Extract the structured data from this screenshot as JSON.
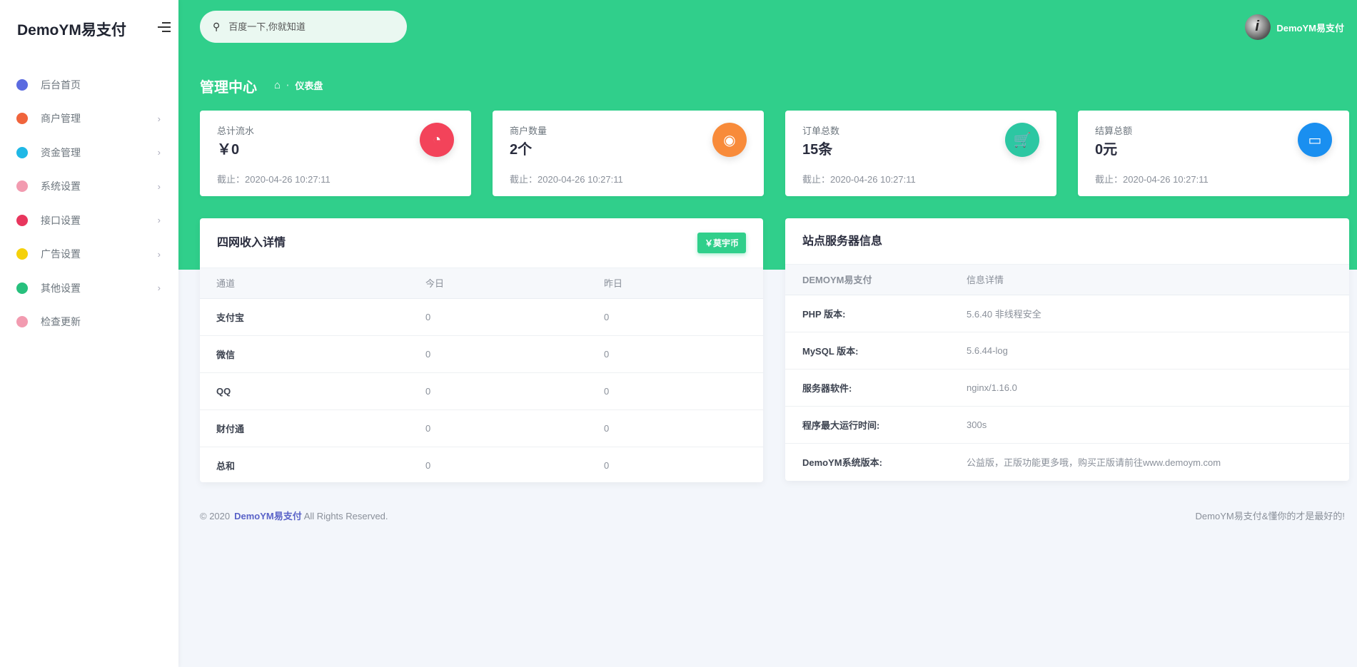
{
  "app": {
    "logo": "DemoYM易支付",
    "user_name": "DemoYM易支付"
  },
  "search": {
    "placeholder": "百度一下,你就知道"
  },
  "sidebar": {
    "items": [
      {
        "label": "后台首页",
        "icon": "compass-icon",
        "color": "#5b6be0",
        "chevron": false
      },
      {
        "label": "商户管理",
        "icon": "user-icon",
        "color": "#f0643c",
        "chevron": true
      },
      {
        "label": "资金管理",
        "icon": "credit-card-icon",
        "color": "#1fb8e6",
        "chevron": true
      },
      {
        "label": "系统设置",
        "icon": "rocket-icon",
        "color": "#f29bb0",
        "chevron": true
      },
      {
        "label": "接口设置",
        "icon": "plug-icon",
        "color": "#e8365d",
        "chevron": true
      },
      {
        "label": "广告设置",
        "icon": "pie-chart-icon",
        "color": "#f5d10a",
        "chevron": true
      },
      {
        "label": "其他设置",
        "icon": "paper-plane-icon",
        "color": "#27c07d",
        "chevron": true
      },
      {
        "label": "检查更新",
        "icon": "rocket-icon",
        "color": "#f29bb0",
        "chevron": false
      }
    ]
  },
  "page": {
    "title": "管理中心",
    "breadcrumb": "仪表盘"
  },
  "stats": [
    {
      "label": "总计流水",
      "value": "￥0",
      "date": "截止：2020-04-26 10:27:11",
      "icon": "pie-chart-icon",
      "glyph": "◔",
      "color": "#f3435a"
    },
    {
      "label": "商户数量",
      "value": "2个",
      "date": "截止：2020-04-26 10:27:11",
      "icon": "user-circle-icon",
      "glyph": "◉",
      "color": "#f88b3a"
    },
    {
      "label": "订单总数",
      "value": "15条",
      "date": "截止：2020-04-26 10:27:11",
      "icon": "cart-icon",
      "glyph": "🛒",
      "color": "#2cc7a2"
    },
    {
      "label": "结算总额",
      "value": "0元",
      "date": "截止：2020-04-26 10:27:11",
      "icon": "credit-card-icon",
      "glyph": "▭",
      "color": "#1a8ff0"
    }
  ],
  "income": {
    "title": "四网收入详情",
    "button": "￥莫宇币",
    "headers": [
      "通道",
      "今日",
      "昨日"
    ],
    "rows": [
      [
        "支付宝",
        "0",
        "0"
      ],
      [
        "微信",
        "0",
        "0"
      ],
      [
        "QQ",
        "0",
        "0"
      ],
      [
        "财付通",
        "0",
        "0"
      ],
      [
        "总和",
        "0",
        "0"
      ]
    ]
  },
  "server": {
    "title": "站点服务器信息",
    "headers": [
      "DEMOYM易支付",
      "信息详情"
    ],
    "rows": [
      [
        "PHP 版本:",
        "5.6.40 非线程安全"
      ],
      [
        "MySQL 版本:",
        "5.6.44-log"
      ],
      [
        "服务器软件:",
        "nginx/1.16.0"
      ],
      [
        "程序最大运行时间:",
        "300s"
      ],
      [
        "DemoYM系统版本:",
        "公益版，正版功能更多哦，购买正版请前往www.demoym.com"
      ]
    ]
  },
  "footer": {
    "copyright": "© 2020",
    "brand": "DemoYM易支付",
    "rights": "All Rights Reserved.",
    "slogan": "DemoYM易支付&懂你的才是最好的!"
  }
}
